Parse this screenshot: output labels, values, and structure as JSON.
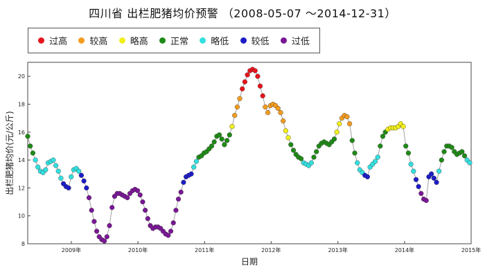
{
  "chart_data": {
    "type": "scatter",
    "title": "四川省 出栏肥猪均价预警 （2008-05-07 ～2014-12-31）",
    "xlabel": "日期",
    "ylabel": "出栏肥猪均价(元/公斤)",
    "ylim": [
      8,
      21
    ],
    "xlim": [
      "2008-05-07",
      "2015-01-01"
    ],
    "yticks": [
      "8",
      "10",
      "12",
      "14",
      "16",
      "18",
      "20"
    ],
    "xticks": [
      "2009年",
      "2010年",
      "2011年",
      "2012年",
      "2013年",
      "2014年",
      "2015年"
    ],
    "legend_placement": "top-left",
    "legend": [
      {
        "key": "guogao",
        "label": "过高",
        "color": "#e8141c"
      },
      {
        "key": "jiaogao",
        "label": "较高",
        "color": "#f39c1f"
      },
      {
        "key": "luegao",
        "label": "略高",
        "color": "#f2ee1a"
      },
      {
        "key": "zhengchang",
        "label": "正常",
        "color": "#1f8a16"
      },
      {
        "key": "luedi",
        "label": "略低",
        "color": "#33e0e0"
      },
      {
        "key": "jiaodi",
        "label": "较低",
        "color": "#1c1cc8"
      },
      {
        "key": "guodi",
        "label": "过低",
        "color": "#7a1796"
      }
    ],
    "series": [
      {
        "level": "zhengchang",
        "x": [
          "2008-05-07",
          "2008-05-21",
          "2008-06-04"
        ],
        "y": [
          15.7,
          15.0,
          14.5
        ]
      },
      {
        "level": "luedi",
        "x": [
          "2008-06-18",
          "2008-07-02",
          "2008-07-16",
          "2008-07-30",
          "2008-08-13",
          "2008-08-27",
          "2008-09-10",
          "2008-09-24",
          "2008-10-08",
          "2008-10-22",
          "2008-11-05"
        ],
        "y": [
          14.0,
          13.5,
          13.2,
          13.1,
          13.3,
          13.8,
          13.9,
          14.0,
          13.6,
          13.2,
          12.7
        ]
      },
      {
        "level": "jiaodi",
        "x": [
          "2008-11-19",
          "2008-12-03",
          "2008-12-17"
        ],
        "y": [
          12.3,
          12.1,
          12.0
        ]
      },
      {
        "level": "luedi",
        "x": [
          "2008-12-31",
          "2009-01-14",
          "2009-01-28",
          "2009-02-11"
        ],
        "y": [
          12.8,
          13.3,
          13.4,
          13.2
        ]
      },
      {
        "level": "jiaodi",
        "x": [
          "2009-02-25",
          "2009-03-11",
          "2009-03-25"
        ],
        "y": [
          12.9,
          12.5,
          12.0
        ]
      },
      {
        "level": "guodi",
        "x": [
          "2009-04-08",
          "2009-04-22",
          "2009-05-06",
          "2009-05-20",
          "2009-06-03",
          "2009-06-17",
          "2009-07-01",
          "2009-07-15",
          "2009-07-29",
          "2009-08-12",
          "2009-08-26",
          "2009-09-09",
          "2009-09-23",
          "2009-10-07",
          "2009-10-21",
          "2009-11-04",
          "2009-11-18",
          "2009-12-02",
          "2009-12-16",
          "2009-12-30",
          "2010-01-13",
          "2010-01-27",
          "2010-02-10",
          "2010-02-24",
          "2010-03-10",
          "2010-03-24",
          "2010-04-07",
          "2010-04-21",
          "2010-05-05",
          "2010-05-19",
          "2010-06-02",
          "2010-06-16",
          "2010-06-30",
          "2010-07-14",
          "2010-07-28",
          "2010-08-11",
          "2010-08-25"
        ],
        "y": [
          11.3,
          10.4,
          9.6,
          8.9,
          8.5,
          8.3,
          8.2,
          8.5,
          9.3,
          10.6,
          11.4,
          11.6,
          11.6,
          11.5,
          11.4,
          11.3,
          11.6,
          11.8,
          11.9,
          11.8,
          11.5,
          11.0,
          10.4,
          9.8,
          9.3,
          9.1,
          9.2,
          9.2,
          9.1,
          8.9,
          8.7,
          8.6,
          8.9,
          9.5,
          10.4,
          11.2,
          11.7
        ]
      },
      {
        "level": "jiaodi",
        "x": [
          "2010-09-08",
          "2010-09-22",
          "2010-10-06",
          "2010-10-20"
        ],
        "y": [
          12.4,
          12.8,
          12.9,
          13.0
        ]
      },
      {
        "level": "luedi",
        "x": [
          "2010-11-03",
          "2010-11-17"
        ],
        "y": [
          13.5,
          13.9
        ]
      },
      {
        "level": "zhengchang",
        "x": [
          "2010-12-01",
          "2010-12-15",
          "2010-12-29",
          "2011-01-12",
          "2011-01-26",
          "2011-02-09",
          "2011-02-23",
          "2011-03-09",
          "2011-03-23",
          "2011-04-06",
          "2011-04-20",
          "2011-05-04",
          "2011-05-18"
        ],
        "y": [
          14.2,
          14.3,
          14.5,
          14.6,
          14.8,
          15.0,
          15.3,
          15.7,
          15.8,
          15.5,
          15.1,
          15.4,
          15.8
        ]
      },
      {
        "level": "luegao",
        "x": [
          "2011-06-01"
        ],
        "y": [
          16.4
        ]
      },
      {
        "level": "jiaogao",
        "x": [
          "2011-06-15",
          "2011-06-29",
          "2011-07-13"
        ],
        "y": [
          17.2,
          17.8,
          18.4
        ]
      },
      {
        "level": "guogao",
        "x": [
          "2011-07-27",
          "2011-08-10",
          "2011-08-24",
          "2011-09-07",
          "2011-09-21",
          "2011-10-05",
          "2011-10-19",
          "2011-11-02",
          "2011-11-16"
        ],
        "y": [
          19.1,
          19.6,
          20.1,
          20.4,
          20.5,
          20.4,
          20.0,
          19.3,
          18.6
        ]
      },
      {
        "level": "jiaogao",
        "x": [
          "2011-11-30",
          "2011-12-14",
          "2011-12-28",
          "2012-01-11",
          "2012-01-25",
          "2012-02-08",
          "2012-02-22",
          "2012-03-07"
        ],
        "y": [
          17.8,
          17.4,
          17.9,
          18.0,
          17.9,
          17.7,
          17.4,
          16.8
        ]
      },
      {
        "level": "luegao",
        "x": [
          "2012-03-21",
          "2012-04-04"
        ],
        "y": [
          16.1,
          15.6
        ]
      },
      {
        "level": "zhengchang",
        "x": [
          "2012-04-18",
          "2012-05-02",
          "2012-05-16",
          "2012-05-30",
          "2012-06-13"
        ],
        "y": [
          15.1,
          14.7,
          14.4,
          14.2,
          14.1
        ]
      },
      {
        "level": "luedi",
        "x": [
          "2012-06-27",
          "2012-07-11",
          "2012-07-25",
          "2012-08-08"
        ],
        "y": [
          13.8,
          13.7,
          13.6,
          13.8
        ]
      },
      {
        "level": "zhengchang",
        "x": [
          "2012-08-22",
          "2012-09-05",
          "2012-09-19",
          "2012-10-03",
          "2012-10-17",
          "2012-10-31",
          "2012-11-14",
          "2012-11-28",
          "2012-12-12"
        ],
        "y": [
          14.2,
          14.6,
          15.0,
          15.2,
          15.3,
          15.2,
          15.1,
          15.3,
          15.5
        ]
      },
      {
        "level": "luegao",
        "x": [
          "2012-12-26",
          "2013-01-09"
        ],
        "y": [
          16.0,
          16.6
        ]
      },
      {
        "level": "jiaogao",
        "x": [
          "2013-01-23",
          "2013-02-06",
          "2013-02-20",
          "2013-03-06"
        ],
        "y": [
          17.0,
          17.2,
          17.1,
          16.6
        ]
      },
      {
        "level": "zhengchang",
        "x": [
          "2013-03-20",
          "2013-04-03"
        ],
        "y": [
          15.4,
          14.5
        ]
      },
      {
        "level": "luedi",
        "x": [
          "2013-04-17",
          "2013-05-01",
          "2013-05-15"
        ],
        "y": [
          13.8,
          13.3,
          13.1
        ]
      },
      {
        "level": "jiaodi",
        "x": [
          "2013-05-29",
          "2013-06-12"
        ],
        "y": [
          12.9,
          12.8
        ]
      },
      {
        "level": "luedi",
        "x": [
          "2013-06-26",
          "2013-07-10",
          "2013-07-24",
          "2013-08-07"
        ],
        "y": [
          13.5,
          13.7,
          13.9,
          14.2
        ]
      },
      {
        "level": "zhengchang",
        "x": [
          "2013-08-21",
          "2013-09-04",
          "2013-09-18"
        ],
        "y": [
          15.0,
          15.7,
          16.0
        ]
      },
      {
        "level": "luegao",
        "x": [
          "2013-10-02",
          "2013-10-16",
          "2013-10-30",
          "2013-11-13",
          "2013-11-27",
          "2013-12-11",
          "2013-12-25"
        ],
        "y": [
          16.2,
          16.3,
          16.3,
          16.3,
          16.4,
          16.6,
          16.4
        ]
      },
      {
        "level": "zhengchang",
        "x": [
          "2014-01-08",
          "2014-01-22"
        ],
        "y": [
          15.0,
          14.5
        ]
      },
      {
        "level": "luedi",
        "x": [
          "2014-02-05",
          "2014-02-19"
        ],
        "y": [
          13.7,
          13.2
        ]
      },
      {
        "level": "jiaodi",
        "x": [
          "2014-03-05",
          "2014-03-19"
        ],
        "y": [
          12.6,
          12.1
        ]
      },
      {
        "level": "guodi",
        "x": [
          "2014-04-02",
          "2014-04-16",
          "2014-04-30"
        ],
        "y": [
          11.6,
          11.2,
          11.1
        ]
      },
      {
        "level": "jiaodi",
        "x": [
          "2014-05-14",
          "2014-05-28",
          "2014-06-11",
          "2014-06-25"
        ],
        "y": [
          12.8,
          13.0,
          12.7,
          12.4
        ]
      },
      {
        "level": "luedi",
        "x": [
          "2014-07-09"
        ],
        "y": [
          13.2
        ]
      },
      {
        "level": "zhengchang",
        "x": [
          "2014-07-23",
          "2014-08-06",
          "2014-08-20",
          "2014-09-03",
          "2014-09-17",
          "2014-10-01",
          "2014-10-15",
          "2014-10-29",
          "2014-11-12",
          "2014-11-26"
        ],
        "y": [
          14.0,
          14.6,
          15.0,
          15.0,
          14.9,
          14.6,
          14.4,
          14.5,
          14.6,
          14.3
        ]
      },
      {
        "level": "luedi",
        "x": [
          "2014-12-10",
          "2014-12-24"
        ],
        "y": [
          14.0,
          13.8
        ]
      }
    ]
  }
}
